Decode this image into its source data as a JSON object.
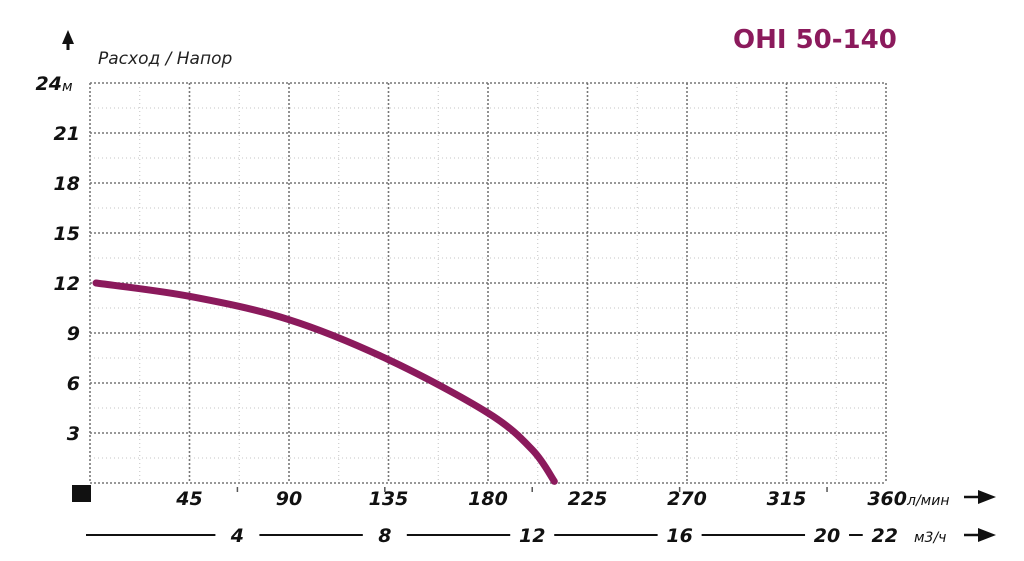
{
  "chart_data": {
    "type": "line",
    "title": "OHI 50-140",
    "ylabel": "Расход / Напор",
    "y_unit": "м",
    "x_unit": "л/мин",
    "x2_unit": "м3/ч",
    "ylim": [
      0,
      24
    ],
    "xlim": [
      0,
      360
    ],
    "grid": true,
    "y_ticks": [
      "3",
      "6",
      "9",
      "12",
      "15",
      "18",
      "21",
      "24"
    ],
    "x_ticks": [
      "45",
      "90",
      "135",
      "180",
      "225",
      "270",
      "315",
      "360"
    ],
    "x2_ticks": [
      "4",
      "8",
      "12",
      "16",
      "20",
      "22"
    ],
    "series": [
      {
        "color": "#8b1a5c",
        "x": [
          0,
          45,
          90,
          135,
          180,
          200,
          210
        ],
        "y": [
          12,
          11.2,
          9.8,
          7.4,
          4.2,
          2.0,
          0.1
        ]
      }
    ],
    "colors": {
      "curve": "#8b1a5c",
      "title": "#8b1a5c",
      "text": "#111111",
      "grid": "#9a9a9a"
    }
  }
}
